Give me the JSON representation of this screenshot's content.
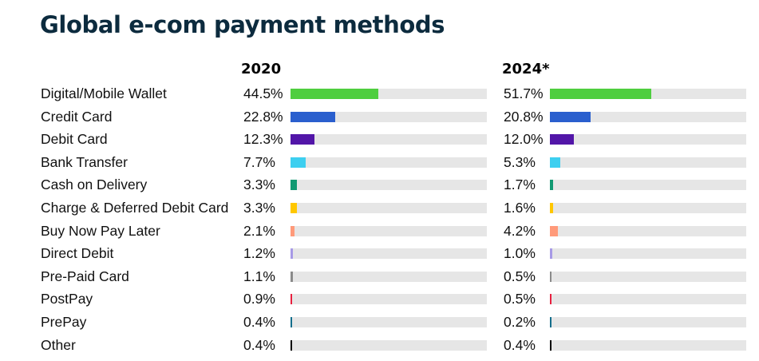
{
  "chart_data": {
    "type": "bar",
    "title": "Global e-com payment methods",
    "categories": [
      "Digital/Mobile Wallet",
      "Credit Card",
      "Debit Card",
      "Bank Transfer",
      "Cash on Delivery",
      "Charge & Deferred Debit Card",
      "Buy Now Pay Later",
      "Direct Debit",
      "Pre-Paid Card",
      "PostPay",
      "PrePay",
      "Other"
    ],
    "colors": [
      "#4fce3f",
      "#2a5fce",
      "#5216a8",
      "#3dcff0",
      "#119972",
      "#ffc700",
      "#ff9a7a",
      "#a79ae6",
      "#8a8a8a",
      "#e8203f",
      "#136e8c",
      "#000000"
    ],
    "series": [
      {
        "name": "2020",
        "values": [
          44.5,
          22.8,
          12.3,
          7.7,
          3.3,
          3.3,
          2.1,
          1.2,
          1.1,
          0.9,
          0.4,
          0.4
        ],
        "labels": [
          "44.5%",
          "22.8%",
          "12.3%",
          "7.7%",
          "3.3%",
          "3.3%",
          "2.1%",
          "1.2%",
          "1.1%",
          "0.9%",
          "0.4%",
          "0.4%"
        ]
      },
      {
        "name": "2024*",
        "values": [
          51.7,
          20.8,
          12.0,
          5.3,
          1.7,
          1.6,
          4.2,
          1.0,
          0.5,
          0.5,
          0.2,
          0.4
        ],
        "labels": [
          "51.7%",
          "20.8%",
          "12.0%",
          "5.3%",
          "1.7%",
          "1.6%",
          "4.2%",
          "1.0%",
          "0.5%",
          "0.5%",
          "0.2%",
          "0.4%"
        ]
      }
    ],
    "xlim": [
      0,
      100
    ],
    "xlabel": "",
    "ylabel": ""
  }
}
